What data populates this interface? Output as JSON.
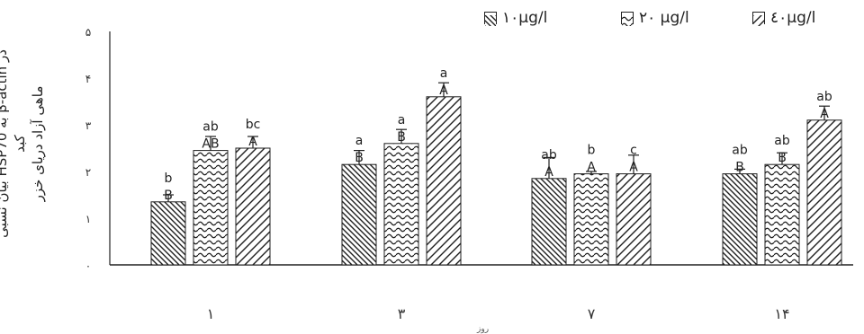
{
  "chart_data": {
    "type": "bar",
    "ylabel_line1": "بیان نسبی HSP70 به β-actin در کبد",
    "ylabel_line2": "ماهی آزاد دریای خزر",
    "xlabel": "روز",
    "ylim": [
      0,
      5
    ],
    "yticks": [
      "۰",
      "۱",
      "۲",
      "۳",
      "۴",
      "۵"
    ],
    "categories": [
      "۱",
      "۳",
      "۷",
      "۱۴"
    ],
    "series": [
      {
        "name": "۱۰µg/l",
        "values": [
          1.35,
          2.15,
          1.85,
          1.95
        ],
        "errors": [
          0.15,
          0.3,
          0.45,
          0.1
        ],
        "letters_lower": [
          "b",
          "a",
          "ab",
          "ab"
        ],
        "letters_upper": [
          "B",
          "B",
          "A",
          "B"
        ]
      },
      {
        "name": "۲۰ µg/l",
        "values": [
          2.45,
          2.6,
          1.95,
          2.15
        ],
        "errors": [
          0.3,
          0.3,
          0.05,
          0.25
        ],
        "letters_lower": [
          "ab",
          "a",
          "b",
          "ab"
        ],
        "letters_upper": [
          "AB",
          "B",
          "A",
          "B"
        ]
      },
      {
        "name": "٤۰µg/l",
        "values": [
          2.5,
          3.6,
          1.95,
          3.1
        ],
        "errors": [
          0.25,
          0.3,
          0.4,
          0.3
        ],
        "letters_lower": [
          "bc",
          "a",
          "c",
          "ab"
        ],
        "letters_upper": [
          "A",
          "A",
          "A",
          "A"
        ]
      }
    ],
    "legend_position": "top"
  },
  "colors": {
    "bars": "#1f1f1f",
    "axis": "#222222",
    "fill": "#ffffff"
  }
}
